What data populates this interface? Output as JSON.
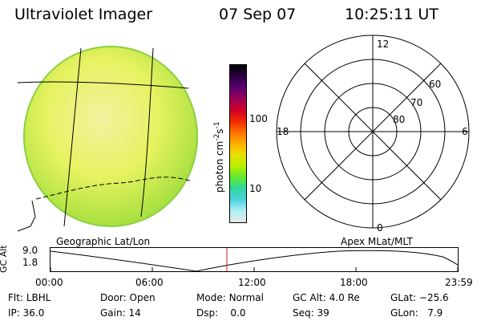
{
  "header": {
    "instrument": "Ultraviolet Imager",
    "date": "07 Sep 07",
    "time": "10:25:11 UT"
  },
  "colorbar": {
    "label": "photon cm",
    "label_sup1": "-2",
    "label_mid": "s",
    "label_sup2": "-1",
    "tick_100": "100",
    "tick_10": "10",
    "colors": [
      "#000000",
      "#2a0040",
      "#5a0070",
      "#9a0058",
      "#d0002a",
      "#f02a00",
      "#ff7000",
      "#ffb000",
      "#e8e000",
      "#b8f000",
      "#60e830",
      "#30d8a0",
      "#50d0e0",
      "#b0f0f0",
      "#e8e8e8"
    ]
  },
  "geo_panel": {
    "label": "Geographic Lat/Lon",
    "disk_color": "#e6f260"
  },
  "polar_plot": {
    "label": "Apex MLat/MLT",
    "mlt_labels": {
      "top": "12",
      "bottom": "0",
      "left": "18",
      "right": "6"
    },
    "mlat_labels": [
      "60",
      "70",
      "80"
    ]
  },
  "altitude_plot": {
    "ylabel": "GC Alt",
    "yticks": [
      "9.0",
      "1.8"
    ],
    "xticks": [
      "00:00",
      "06:00",
      "12:00",
      "18:00",
      "23:59"
    ],
    "current_time_marker": "10:25"
  },
  "footer": {
    "filter_label": "Flt:",
    "filter_value": "LBHL",
    "ip_label": "IP:",
    "ip_value": "36.0",
    "door_label": "Door:",
    "door_value": "Open",
    "gain_label": "Gain:",
    "gain_value": "14",
    "mode_label": "Mode:",
    "mode_value": "Normal",
    "dsp_label": "Dsp:",
    "dsp_value": "0.0",
    "gcalt_label": "GC Alt:",
    "gcalt_value": "4.0 Re",
    "seq_label": "Seq:",
    "seq_value": "39",
    "glat_label": "GLat:",
    "glat_value": "−25.6",
    "glon_label": "GLon:",
    "glon_value": "7.9"
  }
}
